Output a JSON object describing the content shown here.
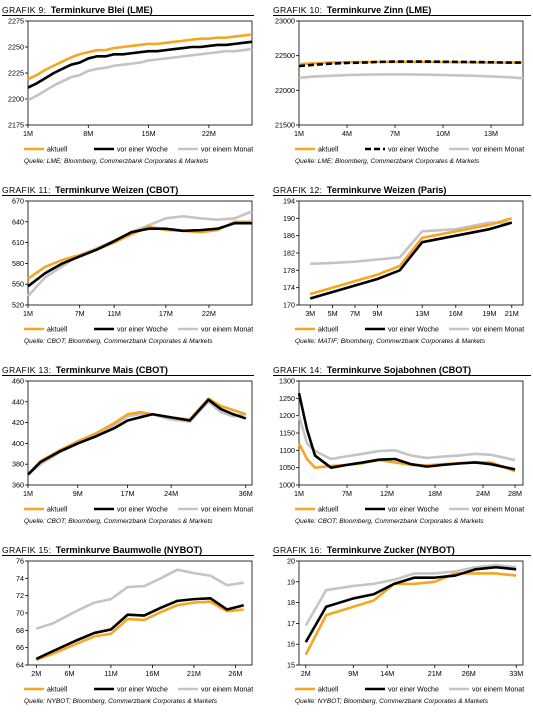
{
  "colors": {
    "current": "#F5A623",
    "week": "#000000",
    "month": "#C4C4C4"
  },
  "legend": {
    "current": "aktuell",
    "week": "vor einer Woche",
    "month": "vor einem Monat"
  },
  "charts": [
    {
      "prefix": "Grafik 9:",
      "name": "Terminkurve Blei (LME)",
      "source": "Quelle: LME; Bloomberg, Commerzbank Corporates & Markets",
      "chart_data": {
        "type": "line",
        "title": "Terminkurve Blei (LME)",
        "x": [
          1,
          2,
          3,
          4,
          5,
          6,
          7,
          8,
          9,
          10,
          11,
          12,
          13,
          14,
          15,
          16,
          17,
          18,
          19,
          20,
          21,
          22,
          23,
          24,
          25,
          26,
          27
        ],
        "xticks": [
          1,
          8,
          15,
          22
        ],
        "xticklabels": [
          "1M",
          "8M",
          "15M",
          "22M"
        ],
        "xlim": [
          1,
          27
        ],
        "ylim": [
          2175,
          2275
        ],
        "yticks": [
          2175,
          2200,
          2225,
          2250,
          2275
        ],
        "series": [
          {
            "name": "aktuell",
            "values": [
              2219,
              2223,
              2228,
              2232,
              2236,
              2240,
              2243,
              2245,
              2247,
              2247,
              2249,
              2250,
              2251,
              2252,
              2253,
              2253,
              2254,
              2255,
              2256,
              2257,
              2258,
              2258,
              2259,
              2259,
              2260,
              2261,
              2262
            ]
          },
          {
            "name": "vor einer Woche",
            "values": [
              2211,
              2215,
              2220,
              2225,
              2229,
              2233,
              2235,
              2239,
              2241,
              2241,
              2243,
              2243,
              2244,
              2245,
              2246,
              2246,
              2247,
              2248,
              2249,
              2250,
              2250,
              2251,
              2252,
              2252,
              2253,
              2254,
              2255
            ]
          },
          {
            "name": "vor einem Monat",
            "values": [
              2199,
              2203,
              2208,
              2213,
              2217,
              2221,
              2223,
              2227,
              2229,
              2230,
              2232,
              2233,
              2234,
              2235,
              2237,
              2238,
              2239,
              2240,
              2241,
              2242,
              2243,
              2244,
              2245,
              2246,
              2246,
              2247,
              2248
            ]
          }
        ]
      }
    },
    {
      "prefix": "Grafik 10:",
      "name": "Terminkurve Zinn (LME)",
      "source": "Quelle: LME; Bloomberg, Commerzbank Corporates & Markets",
      "chart_data": {
        "type": "line",
        "title": "Terminkurve Zinn (LME)",
        "x": [
          1,
          2,
          3,
          4,
          5,
          6,
          7,
          8,
          9,
          10,
          11,
          12,
          13,
          14,
          15
        ],
        "xticks": [
          1,
          4,
          7,
          10,
          13
        ],
        "xticklabels": [
          "1M",
          "4M",
          "7M",
          "10M",
          "13M"
        ],
        "xlim": [
          1,
          15
        ],
        "ylim": [
          21500,
          23000
        ],
        "yticks": [
          21500,
          22000,
          22500,
          23000
        ],
        "series": [
          {
            "name": "aktuell",
            "values": [
              22380,
              22390,
              22400,
              22405,
              22408,
              22410,
              22410,
              22410,
              22410,
              22408,
              22405,
              22402,
              22400,
              22400,
              22400
            ]
          },
          {
            "name": "vor einer Woche",
            "values": [
              22350,
              22370,
              22385,
              22395,
              22400,
              22410,
              22415,
              22415,
              22415,
              22412,
              22410,
              22408,
              22405,
              22400,
              22400
            ]
          },
          {
            "name": "vor einem Monat",
            "values": [
              22180,
              22200,
              22210,
              22220,
              22225,
              22230,
              22230,
              22230,
              22225,
              22220,
              22215,
              22210,
              22200,
              22190,
              22175
            ]
          }
        ]
      }
    },
    {
      "prefix": "Grafik 11:",
      "name": "Terminkurve Weizen (CBOT)",
      "source": "Quelle: CBOT; Bloomberg, Commerzbank Corporates & Markets",
      "chart_data": {
        "type": "line",
        "title": "Terminkurve Weizen (CBOT)",
        "x": [
          1,
          3,
          5,
          7,
          9,
          11,
          13,
          15,
          17,
          19,
          21,
          23,
          25,
          27
        ],
        "xticks": [
          1,
          7,
          11,
          17,
          22
        ],
        "xticklabels": [
          "1M",
          "7M",
          "11M",
          "17M",
          "22M"
        ],
        "xlim": [
          1,
          27
        ],
        "ylim": [
          520,
          670
        ],
        "yticks": [
          520,
          550,
          580,
          610,
          640,
          670
        ],
        "series": [
          {
            "name": "aktuell",
            "values": [
              558,
              575,
              585,
              592,
              600,
              610,
              622,
              633,
              628,
              627,
              625,
              628,
              640,
              640
            ]
          },
          {
            "name": "vor einer Woche",
            "values": [
              547,
              566,
              580,
              590,
              600,
              612,
              625,
              630,
              630,
              627,
              628,
              630,
              638,
              638
            ]
          },
          {
            "name": "vor einem Monat",
            "values": [
              533,
              560,
              576,
              592,
              602,
              613,
              625,
              635,
              645,
              648,
              645,
              643,
              645,
              655
            ]
          }
        ]
      }
    },
    {
      "prefix": "Grafik 12:",
      "name": "Terminkurve Weizen (Paris)",
      "source": "Quelle: MATIF; Bloomberg, Commerzbank Corporates & Markets",
      "chart_data": {
        "type": "line",
        "title": "Terminkurve Weizen (Paris)",
        "x": [
          3,
          5,
          7,
          9,
          11,
          13,
          16,
          19,
          21
        ],
        "xticks": [
          3,
          5,
          7,
          9,
          13,
          16,
          19,
          21
        ],
        "xticklabels": [
          "3M",
          "5M",
          "7M",
          "9M",
          "13M",
          "16M",
          "19M",
          "21M"
        ],
        "xlim": [
          2,
          22
        ],
        "ylim": [
          170,
          194
        ],
        "yticks": [
          170,
          174,
          178,
          182,
          186,
          190,
          194
        ],
        "series": [
          {
            "name": "aktuell",
            "values": [
              172.5,
              174,
              175.5,
              177,
              179,
              185.5,
              187,
              188.5,
              190
            ]
          },
          {
            "name": "vor einer Woche",
            "values": [
              171.5,
              173,
              174.5,
              176,
              178,
              184.5,
              186,
              187.5,
              189
            ]
          },
          {
            "name": "vor einem Monat",
            "values": [
              179.5,
              179.7,
              180,
              180.5,
              181,
              187,
              187.5,
              189,
              189
            ]
          }
        ]
      }
    },
    {
      "prefix": "Grafik 13:",
      "name": "Terminkurve Mais (CBOT)",
      "source": "Quelle: CBOT; Bloomberg, Commerzbank Corporates & Markets",
      "chart_data": {
        "type": "line",
        "title": "Terminkurve Mais (CBOT)",
        "x": [
          1,
          3,
          6,
          9,
          12,
          15,
          17,
          19,
          21,
          24,
          27,
          30,
          32,
          34,
          36
        ],
        "xticks": [
          1,
          9,
          17,
          24,
          36
        ],
        "xticklabels": [
          "1M",
          "9M",
          "17M",
          "24M",
          "36M"
        ],
        "xlim": [
          1,
          37
        ],
        "ylim": [
          360,
          460
        ],
        "yticks": [
          360,
          380,
          400,
          420,
          440,
          460
        ],
        "series": [
          {
            "name": "aktuell",
            "values": [
              370,
              383,
              393,
              402,
              410,
              420,
              428,
              430,
              428,
              425,
              423,
              443,
              436,
              432,
              428
            ]
          },
          {
            "name": "vor einer Woche",
            "values": [
              370,
              382,
              392,
              400,
              407,
              415,
              422,
              425,
              428,
              425,
              422,
              442,
              433,
              428,
              424
            ]
          },
          {
            "name": "vor einem Monat",
            "values": [
              370,
              380,
              391,
              400,
              408,
              418,
              426,
              428,
              428,
              423,
              421,
              440,
              430,
              426,
              428
            ]
          }
        ]
      }
    },
    {
      "prefix": "Grafik 14:",
      "name": "Terminkurve Sojabohnen (CBOT)",
      "source": "Quelle: CBOT; Bloomberg, Commerzbank Corporates & Markets",
      "chart_data": {
        "type": "line",
        "title": "Terminkurve Sojabohnen (CBOT)",
        "x": [
          1,
          2,
          3,
          5,
          7,
          9,
          11,
          13,
          15,
          17,
          19,
          21,
          23,
          25,
          28
        ],
        "xticks": [
          1,
          7,
          12,
          18,
          24,
          28
        ],
        "xticklabels": [
          "1M",
          "7M",
          "12M",
          "18M",
          "24M",
          "28M"
        ],
        "xlim": [
          1,
          29
        ],
        "ylim": [
          1000,
          1300
        ],
        "yticks": [
          1000,
          1050,
          1100,
          1150,
          1200,
          1250,
          1300
        ],
        "series": [
          {
            "name": "aktuell",
            "values": [
              1120,
              1075,
              1050,
              1055,
              1058,
              1063,
              1072,
              1065,
              1058,
              1057,
              1060,
              1063,
              1065,
              1065,
              1040
            ]
          },
          {
            "name": "vor einer Woche",
            "values": [
              1265,
              1160,
              1085,
              1050,
              1058,
              1065,
              1073,
              1075,
              1060,
              1053,
              1058,
              1062,
              1065,
              1060,
              1045
            ]
          },
          {
            "name": "vor einem Monat",
            "values": [
              1200,
              1120,
              1098,
              1075,
              1083,
              1090,
              1098,
              1100,
              1085,
              1078,
              1082,
              1085,
              1090,
              1087,
              1072
            ]
          }
        ]
      }
    },
    {
      "prefix": "Grafik 15:",
      "name": "Terminkurve Baumwolle (NYBOT)",
      "source": "Quelle: NYBOT; Bloomberg, Commerzbank Corporates & Markets",
      "chart_data": {
        "type": "line",
        "title": "Terminkurve Baumwolle (NYBOT)",
        "x": [
          2,
          4,
          7,
          9,
          11,
          13,
          15,
          17,
          19,
          21,
          23,
          25,
          27
        ],
        "xticks": [
          2,
          6,
          11,
          16,
          21,
          26
        ],
        "xticklabels": [
          "2M",
          "6M",
          "11M",
          "16M",
          "21M",
          "26M"
        ],
        "xlim": [
          1,
          28
        ],
        "ylim": [
          64,
          76
        ],
        "yticks": [
          64,
          66,
          68,
          70,
          72,
          74,
          76
        ],
        "series": [
          {
            "name": "aktuell",
            "values": [
              64.6,
              65.3,
              66.5,
              67.3,
              67.6,
              69.3,
              69.2,
              70.1,
              70.9,
              71.2,
              71.3,
              70.2,
              70.4
            ]
          },
          {
            "name": "vor einer Woche",
            "values": [
              64.7,
              65.6,
              66.9,
              67.7,
              68.1,
              69.8,
              69.7,
              70.6,
              71.4,
              71.6,
              71.7,
              70.4,
              70.9
            ]
          },
          {
            "name": "vor einem Monat",
            "values": [
              68.2,
              68.8,
              70.3,
              71.2,
              71.6,
              73,
              73.1,
              74,
              75,
              74.6,
              74.3,
              73.2,
              73.5
            ]
          }
        ]
      }
    },
    {
      "prefix": "Grafik 16:",
      "name": "Terminkurve Zucker (NYBOT)",
      "source": "Quelle: NYBOT; Bloomberg, Commerzbank Corporates & Markets",
      "chart_data": {
        "type": "line",
        "title": "Terminkurve Zucker (NYBOT)",
        "x": [
          2,
          5,
          9,
          12,
          15,
          18,
          21,
          24,
          27,
          30,
          33
        ],
        "xticks": [
          2,
          9,
          14,
          21,
          26,
          33
        ],
        "xticklabels": [
          "2M",
          "9M",
          "14M",
          "21M",
          "26M",
          "33M"
        ],
        "xlim": [
          1,
          34
        ],
        "ylim": [
          15,
          20
        ],
        "yticks": [
          15,
          16,
          17,
          18,
          19,
          20
        ],
        "series": [
          {
            "name": "aktuell",
            "values": [
              15.5,
              17.4,
              17.8,
              18.1,
              18.9,
              18.9,
              19.0,
              19.4,
              19.4,
              19.4,
              19.3
            ]
          },
          {
            "name": "vor einer Woche",
            "values": [
              16.1,
              17.8,
              18.2,
              18.4,
              18.9,
              19.2,
              19.2,
              19.3,
              19.6,
              19.7,
              19.6
            ]
          },
          {
            "name": "vor einem Monat",
            "values": [
              16.9,
              18.6,
              18.8,
              18.9,
              19.1,
              19.4,
              19.4,
              19.5,
              19.7,
              19.8,
              19.7
            ]
          }
        ]
      }
    }
  ]
}
